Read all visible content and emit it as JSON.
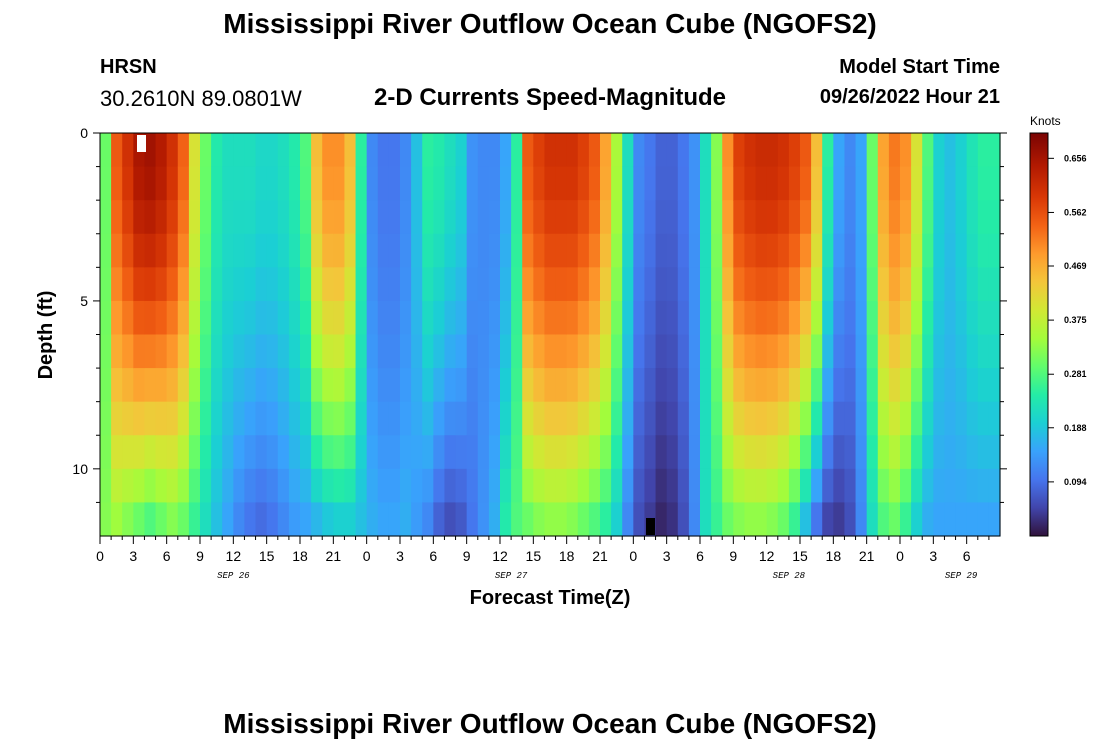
{
  "header": {
    "title": "Mississippi River Outflow Ocean Cube (NGOFS2)",
    "station_name": "HRSN",
    "station_coords": "30.2610N  89.0801W",
    "subtitle": "2-D Currents Speed-Magnitude",
    "model_label": "Model Start Time",
    "model_time": "09/26/2022 Hour 21"
  },
  "footer": {
    "title": "Mississippi River Outflow Ocean Cube (NGOFS2)"
  },
  "chart_data": {
    "type": "heatmap",
    "title": "2-D Currents Speed-Magnitude",
    "xlabel": "Forecast Time(Z)",
    "ylabel": "Depth (ft)",
    "colorbar_unit": "Knots",
    "colorbar_ticks": [
      "0.656",
      "0.562",
      "0.469",
      "0.375",
      "0.281",
      "0.188",
      "0.094"
    ],
    "colorbar_tick_values": [
      0.656,
      0.562,
      0.469,
      0.375,
      0.281,
      0.188,
      0.094
    ],
    "colorbar_range": [
      0.0,
      0.7
    ],
    "xlim_hours": [
      0,
      81
    ],
    "ylim_ft": [
      0,
      12
    ],
    "y_tick_labels": [
      "0",
      "5",
      "10"
    ],
    "y_tick_values": [
      0,
      5,
      10
    ],
    "x_tick_labels": [
      "0",
      "3",
      "6",
      "9",
      "12",
      "15",
      "18",
      "21",
      "0",
      "3",
      "6",
      "9",
      "12",
      "15",
      "18",
      "21",
      "0",
      "3",
      "6",
      "9",
      "12",
      "15",
      "18",
      "21",
      "0",
      "3",
      "6"
    ],
    "date_labels": [
      "SEP 26",
      "SEP 27",
      "SEP 28",
      "SEP 29"
    ],
    "date_label_hours": [
      12,
      37,
      62,
      77.5
    ],
    "time_step_hours": 1,
    "depth_levels": 12,
    "surface_speed_profile": [
      0.3,
      0.55,
      0.6,
      0.65,
      0.66,
      0.64,
      0.6,
      0.54,
      0.4,
      0.3,
      0.24,
      0.22,
      0.22,
      0.22,
      0.21,
      0.21,
      0.22,
      0.24,
      0.28,
      0.45,
      0.5,
      0.5,
      0.45,
      0.25,
      0.12,
      0.1,
      0.1,
      0.12,
      0.18,
      0.25,
      0.24,
      0.22,
      0.2,
      0.13,
      0.12,
      0.12,
      0.15,
      0.25,
      0.55,
      0.58,
      0.6,
      0.6,
      0.6,
      0.58,
      0.55,
      0.48,
      0.35,
      0.22,
      0.12,
      0.1,
      0.08,
      0.08,
      0.1,
      0.13,
      0.22,
      0.32,
      0.5,
      0.58,
      0.6,
      0.61,
      0.61,
      0.6,
      0.58,
      0.55,
      0.45,
      0.25,
      0.15,
      0.12,
      0.15,
      0.3,
      0.48,
      0.52,
      0.5,
      0.4,
      0.28,
      0.2,
      0.18,
      0.2,
      0.23,
      0.25,
      0.25
    ],
    "bottom_speed_profile": [
      0.32,
      0.34,
      0.32,
      0.3,
      0.28,
      0.3,
      0.32,
      0.3,
      0.26,
      0.22,
      0.18,
      0.15,
      0.12,
      0.1,
      0.09,
      0.1,
      0.12,
      0.14,
      0.15,
      0.17,
      0.19,
      0.2,
      0.2,
      0.18,
      0.16,
      0.15,
      0.15,
      0.16,
      0.14,
      0.12,
      0.08,
      0.06,
      0.07,
      0.1,
      0.13,
      0.16,
      0.24,
      0.28,
      0.3,
      0.32,
      0.33,
      0.33,
      0.32,
      0.3,
      0.28,
      0.25,
      0.2,
      0.12,
      0.06,
      0.04,
      0.02,
      0.03,
      0.06,
      0.12,
      0.22,
      0.26,
      0.3,
      0.32,
      0.33,
      0.33,
      0.32,
      0.3,
      0.26,
      0.18,
      0.1,
      0.05,
      0.04,
      0.06,
      0.12,
      0.22,
      0.28,
      0.3,
      0.26,
      0.2,
      0.16,
      0.15,
      0.15,
      0.15,
      0.15,
      0.15,
      0.15
    ]
  }
}
